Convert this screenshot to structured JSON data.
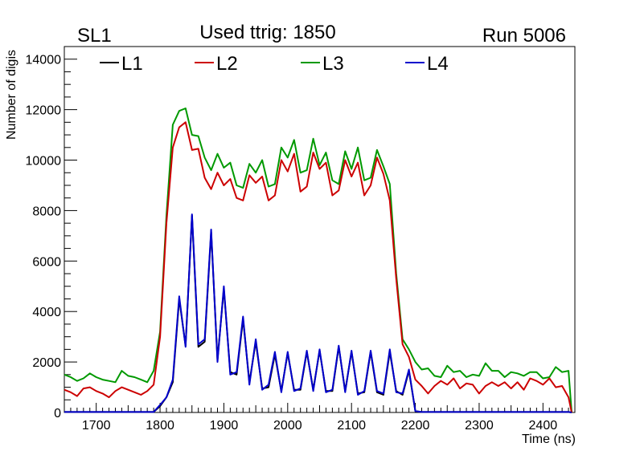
{
  "chart_data": {
    "type": "line",
    "title": "Used ttrig: 1850",
    "left_label": "SL1",
    "right_label": "Run 5006",
    "xlabel": "Time (ns)",
    "ylabel": "Number of digis",
    "xlim": [
      1650,
      2450
    ],
    "ylim": [
      0,
      14500
    ],
    "x_ticks": [
      1700,
      1800,
      1900,
      2000,
      2100,
      2200,
      2300,
      2400
    ],
    "y_ticks": [
      0,
      2000,
      4000,
      6000,
      8000,
      10000,
      12000,
      14000
    ],
    "legend_placement": "top",
    "x": [
      1650,
      1660,
      1670,
      1680,
      1690,
      1700,
      1710,
      1720,
      1730,
      1740,
      1750,
      1760,
      1770,
      1780,
      1790,
      1800,
      1810,
      1820,
      1830,
      1840,
      1850,
      1860,
      1870,
      1880,
      1890,
      1900,
      1910,
      1920,
      1930,
      1940,
      1950,
      1960,
      1970,
      1980,
      1990,
      2000,
      2010,
      2020,
      2030,
      2040,
      2050,
      2060,
      2070,
      2080,
      2090,
      2100,
      2110,
      2120,
      2130,
      2140,
      2150,
      2160,
      2170,
      2180,
      2190,
      2200,
      2210,
      2220,
      2230,
      2240,
      2250,
      2260,
      2270,
      2280,
      2290,
      2300,
      2310,
      2320,
      2330,
      2340,
      2350,
      2360,
      2370,
      2380,
      2390,
      2400,
      2410,
      2420,
      2430,
      2440
    ],
    "series": [
      {
        "name": "L1",
        "color": "#000000",
        "values": [
          20,
          20,
          20,
          20,
          20,
          20,
          20,
          20,
          20,
          20,
          20,
          20,
          20,
          20,
          20,
          250,
          600,
          1200,
          4500,
          2650,
          7800,
          2600,
          2800,
          7150,
          2100,
          4900,
          1600,
          1500,
          3700,
          1200,
          2800,
          950,
          1000,
          2300,
          850,
          2350,
          900,
          900,
          2400,
          900,
          2450,
          850,
          850,
          2600,
          850,
          2400,
          750,
          800,
          2400,
          800,
          700,
          2400,
          850,
          700,
          1650,
          50,
          20,
          20,
          20,
          20,
          20,
          20,
          20,
          20,
          20,
          20,
          20,
          20,
          20,
          20,
          20,
          20,
          20,
          20,
          20,
          20,
          20,
          20,
          20,
          20
        ]
      },
      {
        "name": "L2",
        "color": "#cc0000",
        "values": [
          900,
          800,
          650,
          950,
          1000,
          850,
          750,
          600,
          850,
          1000,
          900,
          800,
          700,
          850,
          1100,
          3000,
          7500,
          10500,
          11300,
          11500,
          10400,
          10450,
          9300,
          8850,
          9500,
          9000,
          9250,
          8500,
          8400,
          9400,
          9100,
          9350,
          8400,
          8600,
          10000,
          9550,
          10250,
          8750,
          8950,
          10300,
          9650,
          9900,
          8600,
          8800,
          10000,
          9350,
          9900,
          8600,
          9000,
          10100,
          9450,
          8400,
          5300,
          2700,
          2200,
          1300,
          1050,
          750,
          1050,
          1250,
          1100,
          1350,
          950,
          1150,
          1100,
          750,
          1050,
          1200,
          1050,
          1200,
          950,
          1200,
          900,
          1350,
          1250,
          1100,
          1350,
          1000,
          1050,
          600
        ]
      },
      {
        "name": "L3",
        "color": "#009900",
        "values": [
          1500,
          1400,
          1250,
          1350,
          1550,
          1400,
          1300,
          1250,
          1200,
          1650,
          1450,
          1400,
          1300,
          1200,
          1650,
          3200,
          7800,
          11400,
          11950,
          12050,
          11000,
          10950,
          10100,
          9600,
          10250,
          9700,
          9900,
          9000,
          8900,
          9850,
          9500,
          10000,
          8950,
          9050,
          10500,
          10100,
          10800,
          9500,
          9600,
          10850,
          9800,
          10300,
          9200,
          9050,
          10350,
          9650,
          10500,
          9200,
          9300,
          10400,
          9750,
          9050,
          5500,
          2900,
          2500,
          2000,
          1700,
          1750,
          1450,
          1400,
          1850,
          1600,
          1650,
          1400,
          1500,
          1450,
          1950,
          1650,
          1650,
          1400,
          1600,
          1550,
          1450,
          1600,
          1600,
          1350,
          1400,
          1800,
          1600,
          1650
        ]
      },
      {
        "name": "L4",
        "color": "#0000cc",
        "values": [
          20,
          20,
          20,
          20,
          20,
          20,
          20,
          20,
          20,
          20,
          20,
          20,
          20,
          20,
          20,
          300,
          600,
          1300,
          4600,
          2600,
          7850,
          2700,
          2900,
          7250,
          2000,
          5000,
          1500,
          1600,
          3800,
          1100,
          2900,
          900,
          1100,
          2400,
          800,
          2400,
          850,
          950,
          2450,
          850,
          2500,
          800,
          900,
          2650,
          800,
          2450,
          700,
          850,
          2450,
          850,
          750,
          2500,
          800,
          750,
          1700,
          50,
          20,
          20,
          20,
          20,
          20,
          20,
          20,
          20,
          20,
          20,
          20,
          20,
          20,
          20,
          20,
          20,
          20,
          20,
          20,
          20,
          20,
          20,
          20,
          20
        ]
      }
    ]
  }
}
